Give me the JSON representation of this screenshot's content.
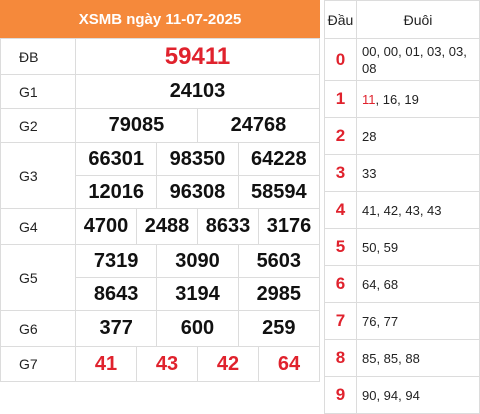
{
  "header": {
    "title": "XSMB ngày 11-07-2025"
  },
  "prizes": {
    "db": {
      "label": "ĐB",
      "value": "59411"
    },
    "g1": {
      "label": "G1",
      "values": [
        "24103"
      ]
    },
    "g2": {
      "label": "G2",
      "values": [
        "79085",
        "24768"
      ]
    },
    "g3": {
      "label": "G3",
      "values": [
        "66301",
        "98350",
        "64228",
        "12016",
        "96308",
        "58594"
      ]
    },
    "g4": {
      "label": "G4",
      "values": [
        "4700",
        "2488",
        "8633",
        "3176"
      ]
    },
    "g5": {
      "label": "G5",
      "values": [
        "7319",
        "3090",
        "5603",
        "8643",
        "3194",
        "2985"
      ]
    },
    "g6": {
      "label": "G6",
      "values": [
        "377",
        "600",
        "259"
      ]
    },
    "g7": {
      "label": "G7",
      "values": [
        "41",
        "43",
        "42",
        "64"
      ]
    }
  },
  "loto": {
    "head_label": "Đầu",
    "tail_label": "Đuôi",
    "rows": [
      {
        "head": "0",
        "tails": "00, 00, 01, 03, 03, 08"
      },
      {
        "head": "1",
        "tail_first": "11",
        "tails_rest": ", 16, 19"
      },
      {
        "head": "2",
        "tails": "28"
      },
      {
        "head": "3",
        "tails": "33"
      },
      {
        "head": "4",
        "tails": "41, 42, 43, 43"
      },
      {
        "head": "5",
        "tails": "50, 59"
      },
      {
        "head": "6",
        "tails": "64, 68"
      },
      {
        "head": "7",
        "tails": "76, 77"
      },
      {
        "head": "8",
        "tails": "85, 85, 88"
      },
      {
        "head": "9",
        "tails": "90, 94, 94"
      }
    ]
  },
  "colors": {
    "header_bg": "#f5893b",
    "accent_red": "#e0222d"
  }
}
